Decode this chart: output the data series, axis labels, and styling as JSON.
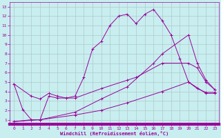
{
  "xlabel": "Windchill (Refroidissement éolien,°C)",
  "xlim": [
    -0.5,
    23.5
  ],
  "ylim": [
    0.5,
    13.5
  ],
  "xticks": [
    0,
    1,
    2,
    3,
    4,
    5,
    6,
    7,
    8,
    9,
    10,
    11,
    12,
    13,
    14,
    15,
    16,
    17,
    18,
    19,
    20,
    21,
    22,
    23
  ],
  "yticks": [
    1,
    2,
    3,
    4,
    5,
    6,
    7,
    8,
    9,
    10,
    11,
    12,
    13
  ],
  "bg_color": "#c8eef0",
  "grid_color": "#b0c8c8",
  "line_color": "#990099",
  "series": [
    {
      "x": [
        0,
        1,
        2,
        3,
        4,
        5,
        6,
        7,
        8,
        9,
        10,
        11,
        12,
        13,
        14,
        15,
        16,
        17,
        18,
        19,
        20,
        21,
        22,
        23
      ],
      "y": [
        4.8,
        2.1,
        1.0,
        1.0,
        3.5,
        3.3,
        3.3,
        3.5,
        5.5,
        8.5,
        9.3,
        11.0,
        12.0,
        12.2,
        11.2,
        12.2,
        12.7,
        11.5,
        10.0,
        7.5,
        5.0,
        4.3,
        3.9,
        3.9
      ]
    },
    {
      "x": [
        0,
        3,
        7,
        10,
        13,
        16,
        17,
        20,
        21,
        22,
        23
      ],
      "y": [
        0.8,
        1.0,
        1.8,
        3.2,
        4.5,
        7.0,
        8.0,
        10.0,
        7.0,
        5.2,
        4.2
      ]
    },
    {
      "x": [
        0,
        2,
        3,
        4,
        5,
        6,
        7,
        10,
        13,
        14,
        17,
        20,
        21,
        22,
        23
      ],
      "y": [
        4.8,
        3.5,
        3.2,
        3.8,
        3.5,
        3.3,
        3.3,
        4.3,
        5.2,
        5.5,
        7.0,
        7.0,
        6.5,
        5.0,
        4.2
      ]
    },
    {
      "x": [
        0,
        2,
        3,
        7,
        10,
        13,
        17,
        20,
        22,
        23
      ],
      "y": [
        0.8,
        1.0,
        1.0,
        1.5,
        2.0,
        2.8,
        4.0,
        5.0,
        3.8,
        3.8
      ]
    }
  ]
}
